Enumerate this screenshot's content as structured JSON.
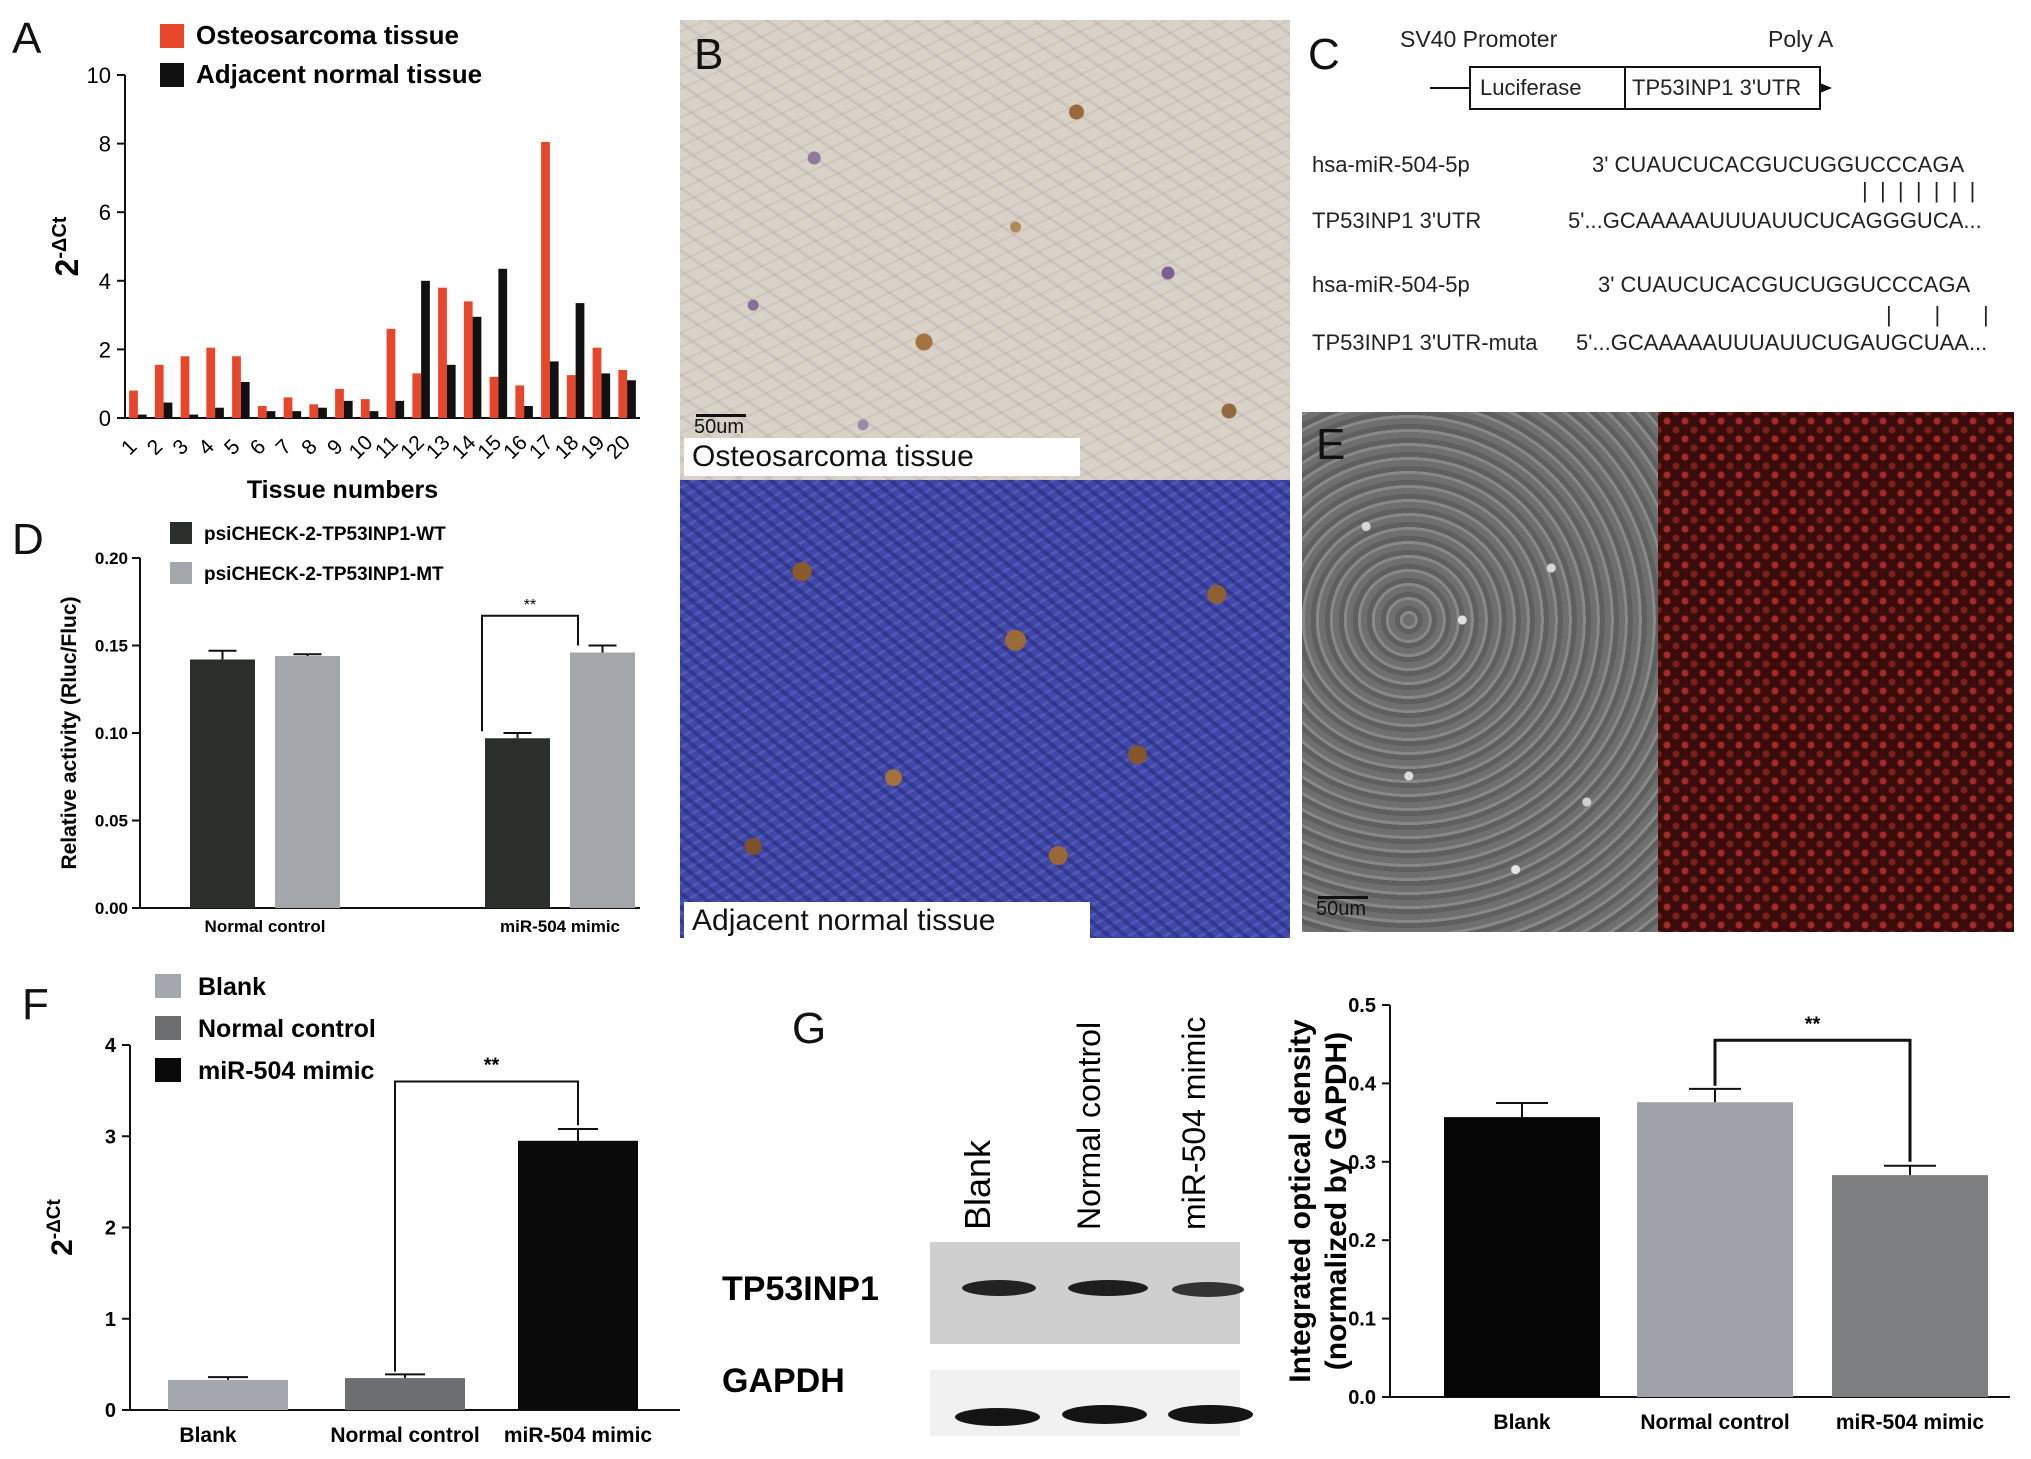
{
  "panels": {
    "A": "A",
    "B": "B",
    "C": "C",
    "D": "D",
    "E": "E",
    "F": "F",
    "G": "G"
  },
  "colors": {
    "osteo": "#e8462a",
    "adjacent": "#111111",
    "wt": "#2b2f2c",
    "mt": "#a3a6aa",
    "blank_f": "#a4a7ad",
    "nc_f": "#6c6e70",
    "mimic_f": "#0a0a0a",
    "blank_g": "#050505",
    "nc_g": "#9fa2a9",
    "mimic_g": "#7d7e80",
    "ihc_osteo_bg": "#d9d2c8",
    "ihc_adj_bg": "#3f47a8",
    "fluor_bg": "#3a0d0c"
  },
  "chart_data": [
    {
      "id": "A",
      "type": "bar",
      "ylabel": "2-ΔCt",
      "xlabel": "Tissue numbers",
      "ylim": [
        0,
        10
      ],
      "yticks": [
        0,
        2,
        4,
        6,
        8,
        10
      ],
      "legend_position": "top-left",
      "categories": [
        "1",
        "2",
        "3",
        "4",
        "5",
        "6",
        "7",
        "8",
        "9",
        "10",
        "11",
        "12",
        "13",
        "14",
        "15",
        "16",
        "17",
        "18",
        "19",
        "20"
      ],
      "series": [
        {
          "name": "Osteosarcoma  tissue",
          "values": [
            0.8,
            1.55,
            1.8,
            2.05,
            1.8,
            0.35,
            0.6,
            0.4,
            0.85,
            0.55,
            2.6,
            1.3,
            3.8,
            3.4,
            1.2,
            0.95,
            8.05,
            1.25,
            2.05,
            1.4
          ]
        },
        {
          "name": "Adjacent normal  tissue",
          "values": [
            0.1,
            0.45,
            0.1,
            0.3,
            1.05,
            0.2,
            0.2,
            0.3,
            0.5,
            0.2,
            0.5,
            4.0,
            1.55,
            2.95,
            4.35,
            0.35,
            1.65,
            3.35,
            1.3,
            1.1
          ]
        }
      ]
    },
    {
      "id": "D",
      "type": "bar",
      "ylabel": "Relative activity (Rluc/Fluc)",
      "ylim": [
        0,
        0.2
      ],
      "yticks": [
        "0.00",
        "0.05",
        "0.10",
        "0.15",
        "0.20"
      ],
      "legend_position": "top-left",
      "categories": [
        "Normal control",
        "miR-504 mimic"
      ],
      "series": [
        {
          "name": "psiCHECK-2-TP53INP1-WT",
          "values": [
            0.142,
            0.097
          ],
          "errors": [
            0.005,
            0.003
          ]
        },
        {
          "name": "psiCHECK-2-TP53INP1-MT",
          "values": [
            0.144,
            0.146
          ],
          "errors": [
            0.001,
            0.004
          ]
        }
      ],
      "annotation": "**"
    },
    {
      "id": "F",
      "type": "bar",
      "ylabel": "2-ΔCt",
      "ylim": [
        0,
        4
      ],
      "yticks": [
        0,
        1,
        2,
        3,
        4
      ],
      "legend_position": "top-left",
      "categories": [
        "Blank",
        "Normal control",
        "miR-504 mimic"
      ],
      "legend": [
        "Blank",
        "Normal control",
        "miR-504 mimic"
      ],
      "values": [
        0.33,
        0.35,
        2.95
      ],
      "errors": [
        0.03,
        0.04,
        0.13
      ],
      "annotation": "**"
    },
    {
      "id": "G",
      "type": "bar",
      "ylabel": "Integrated optical density (normalized by GAPDH)",
      "ylabel_line1": "Integrated optical density",
      "ylabel_line2": "(normalized by GAPDH)",
      "ylim": [
        0,
        0.5
      ],
      "yticks": [
        "0.0",
        "0.1",
        "0.2",
        "0.3",
        "0.4",
        "0.5"
      ],
      "categories": [
        "Blank",
        "Normal control",
        "miR-504 mimic"
      ],
      "values": [
        0.357,
        0.376,
        0.283
      ],
      "errors": [
        0.018,
        0.017,
        0.012
      ],
      "annotation": "**"
    }
  ],
  "panel_b": {
    "top_caption": "Osteosarcoma tissue",
    "bottom_caption": "Adjacent normal tissue",
    "scale_bar": "50um"
  },
  "panel_c": {
    "promoter": "SV40 Promoter",
    "polya": "Poly A",
    "box1": "Luciferase",
    "box2": "TP53INP1 3'UTR",
    "rows": [
      {
        "name": "hsa-miR-504-5p",
        "seq": "3' CUAUCUCACGUCUGGUCCCAGA"
      },
      {
        "pairs": "|  |  |  |  |  |  |"
      },
      {
        "name": "TP53INP1 3'UTR",
        "seq": "5'...GCAAAAAUUUAUUCUCAGGGUCA..."
      },
      {
        "name": "hsa-miR-504-5p",
        "seq": "3' CUAUCUCACGUCUGGUCCCAGA"
      },
      {
        "pairs": "|       |       |"
      },
      {
        "name": "TP53INP1 3'UTR-muta",
        "seq": "5'...GCAAAAAUUUAUUCUGAUGCUAA..."
      }
    ]
  },
  "panel_e": {
    "scale_bar": "50um"
  },
  "panel_g_blot": {
    "lanes": [
      "Blank",
      "Normal control",
      "miR-504 mimic"
    ],
    "rows": [
      "TP53INP1",
      "GAPDH"
    ]
  }
}
